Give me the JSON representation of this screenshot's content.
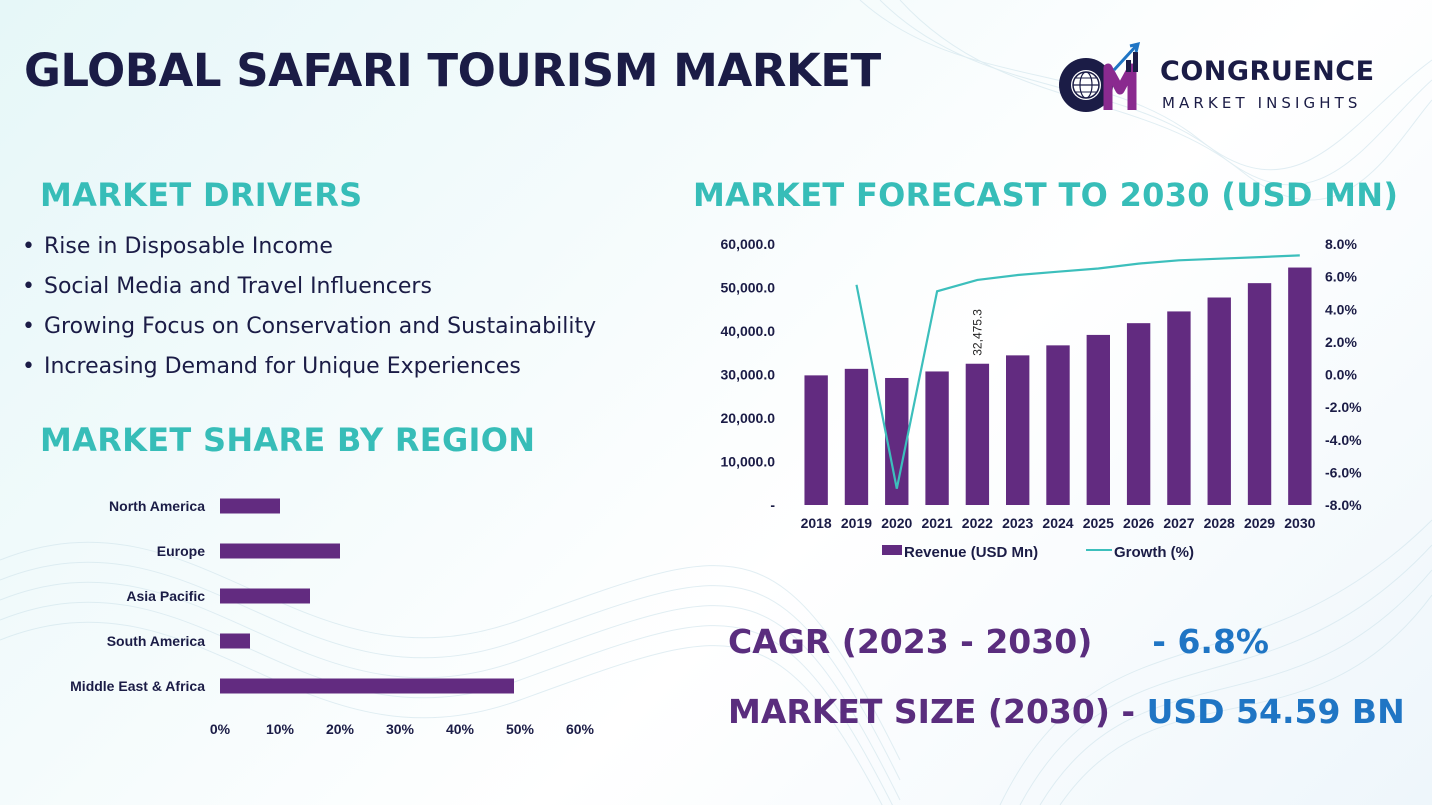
{
  "title": "GLOBAL SAFARI TOURISM MARKET",
  "logo": {
    "name": "CONGRUENCE",
    "tagline": "MARKET INSIGHTS",
    "icon": "cm-globe-growth-logo-icon"
  },
  "drivers": {
    "heading": "MARKET DRIVERS",
    "items": [
      "Rise in Disposable Income",
      "Social Media and Travel Influencers",
      "Growing Focus on Conservation and Sustainability",
      "Increasing Demand for Unique Experiences"
    ]
  },
  "share": {
    "heading": "MARKET SHARE BY REGION"
  },
  "forecast": {
    "heading": "MARKET FORECAST TO 2030 (USD MN)"
  },
  "kpis": {
    "cagr_label": "CAGR (2023 - 2030)",
    "cagr_value": "- 6.8%",
    "size_label": "MARKET SIZE (2030) -",
    "size_value": "USD 54.59 BN"
  },
  "colors": {
    "bar": "#622b80",
    "line": "#3cbfbc",
    "heading": "#37bdb8",
    "navy": "#1b1c46"
  },
  "chart_data": [
    {
      "type": "bar",
      "orientation": "horizontal",
      "categories": [
        "North America",
        "Europe",
        "Asia Pacific",
        "South America",
        "Middle East & Africa"
      ],
      "values": [
        10,
        20,
        15,
        5,
        49
      ],
      "xlim": [
        0,
        60
      ],
      "xticks": [
        "0%",
        "10%",
        "20%",
        "30%",
        "40%",
        "50%",
        "60%"
      ],
      "grid": false
    },
    {
      "type": "bar",
      "categories": [
        "2018",
        "2019",
        "2020",
        "2021",
        "2022",
        "2023",
        "2024",
        "2025",
        "2026",
        "2027",
        "2028",
        "2029",
        "2030"
      ],
      "series": [
        {
          "name": "Revenue (USD Mn)",
          "type": "bar",
          "values": [
            29800,
            31300,
            29200,
            30700,
            32475.3,
            34400,
            36700,
            39100,
            41800,
            44500,
            47700,
            51000,
            54590
          ]
        },
        {
          "name": "Growth (%)",
          "type": "line",
          "axis": "right",
          "values": [
            null,
            5.5,
            -7.0,
            5.1,
            5.8,
            6.1,
            6.3,
            6.5,
            6.8,
            7.0,
            7.1,
            7.2,
            7.3
          ]
        }
      ],
      "ylim": [
        0,
        60000
      ],
      "yticks": [
        "-",
        "10,000.0",
        "20,000.0",
        "30,000.0",
        "40,000.0",
        "50,000.0",
        "60,000.0"
      ],
      "y2lim": [
        -8,
        8
      ],
      "y2ticks": [
        "-8.0%",
        "-6.0%",
        "-4.0%",
        "-2.0%",
        "0.0%",
        "2.0%",
        "4.0%",
        "6.0%",
        "8.0%"
      ],
      "data_label": {
        "index": 4,
        "text": "32,475.3"
      },
      "legend": "bottom",
      "grid": false
    }
  ]
}
